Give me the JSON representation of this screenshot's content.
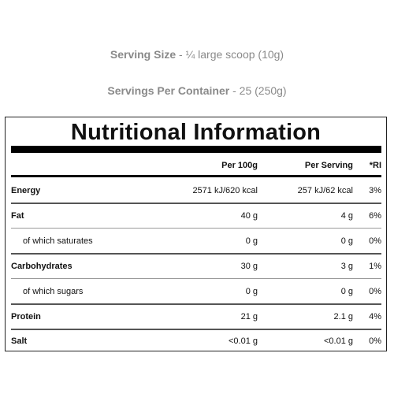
{
  "serving_size": {
    "label": "Serving Size",
    "value": " - ¼ large scoop (10g)"
  },
  "servings_per_container": {
    "label": "Servings Per Container",
    "value": " - 25 (250g)"
  },
  "panel": {
    "title": "Nutritional Information",
    "columns": {
      "per_100g": "Per 100g",
      "per_serving": "Per Serving",
      "ri": "*RI"
    },
    "rows": [
      {
        "name": "Energy",
        "per_100g": "2571 kJ/620 kcal",
        "per_serving": "257 kJ/62 kcal",
        "ri": "3%"
      },
      {
        "name": "Fat",
        "per_100g": "40 g",
        "per_serving": "4 g",
        "ri": "6%"
      },
      {
        "name": "of which saturates",
        "per_100g": "0 g",
        "per_serving": "0 g",
        "ri": "0%"
      },
      {
        "name": "Carbohydrates",
        "per_100g": "30 g",
        "per_serving": "3 g",
        "ri": "1%"
      },
      {
        "name": "of which sugars",
        "per_100g": "0 g",
        "per_serving": "0 g",
        "ri": "0%"
      },
      {
        "name": "Protein",
        "per_100g": "21 g",
        "per_serving": "2.1 g",
        "ri": "4%"
      },
      {
        "name": "Salt",
        "per_100g": "<0.01 g",
        "per_serving": "<0.01 g",
        "ri": "0%"
      }
    ]
  }
}
